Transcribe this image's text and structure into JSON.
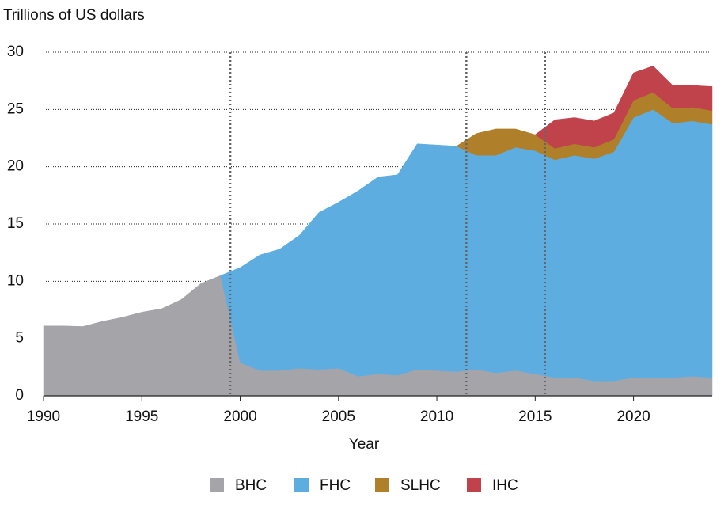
{
  "chart_data": {
    "type": "stacked-area",
    "title": "Trillions of US dollars",
    "x_label": "Year",
    "x": [
      1990,
      1991,
      1992,
      1993,
      1994,
      1995,
      1996,
      1997,
      1998,
      1999,
      2000,
      2001,
      2002,
      2003,
      2004,
      2005,
      2006,
      2007,
      2008,
      2009,
      2010,
      2011,
      2012,
      2013,
      2014,
      2015,
      2016,
      2017,
      2018,
      2019,
      2020,
      2021,
      2022,
      2023,
      2024
    ],
    "series": [
      {
        "name": "BHC",
        "color": "#a5a4a9",
        "values": [
          6.1,
          6.1,
          6.05,
          6.5,
          6.85,
          7.3,
          7.6,
          8.4,
          9.8,
          10.5,
          2.9,
          2.2,
          2.2,
          2.4,
          2.3,
          2.4,
          1.7,
          1.9,
          1.8,
          2.3,
          2.2,
          2.1,
          2.3,
          2.0,
          2.2,
          1.9,
          1.6,
          1.6,
          1.3,
          1.3,
          1.6,
          1.6,
          1.6,
          1.7,
          1.6
        ]
      },
      {
        "name": "FHC",
        "color": "#5eade0",
        "values": [
          null,
          null,
          null,
          null,
          null,
          null,
          null,
          null,
          null,
          0,
          8.3,
          10.1,
          10.6,
          11.6,
          13.7,
          14.5,
          16.2,
          17.2,
          17.5,
          19.7,
          19.7,
          19.7,
          18.7,
          19.0,
          19.5,
          19.5,
          19.0,
          19.4,
          19.4,
          20.0,
          22.7,
          23.4,
          22.2,
          22.3,
          22.1
        ]
      },
      {
        "name": "SLHC",
        "color": "#b07f2a",
        "values": [
          null,
          null,
          null,
          null,
          null,
          null,
          null,
          null,
          null,
          null,
          null,
          null,
          null,
          null,
          null,
          null,
          null,
          null,
          null,
          null,
          null,
          0,
          1.9,
          2.3,
          1.6,
          1.4,
          1.0,
          1.0,
          1.0,
          1.1,
          1.5,
          1.5,
          1.3,
          1.2,
          1.2
        ]
      },
      {
        "name": "IHC",
        "color": "#c0424a",
        "values": [
          null,
          null,
          null,
          null,
          null,
          null,
          null,
          null,
          null,
          null,
          null,
          null,
          null,
          null,
          null,
          null,
          null,
          null,
          null,
          null,
          null,
          null,
          null,
          null,
          null,
          0,
          2.5,
          2.3,
          2.3,
          2.3,
          2.4,
          2.3,
          2.0,
          1.9,
          2.1
        ]
      }
    ],
    "reference_lines": [
      1999.5,
      2011.5,
      2015.5
    ],
    "xlim": [
      1990,
      2024
    ],
    "xticks": [
      1990,
      1995,
      2000,
      2005,
      2010,
      2015,
      2020
    ],
    "ylim": [
      0,
      30
    ],
    "yticks": [
      0,
      5,
      10,
      15,
      20,
      25,
      30
    ],
    "legend": "bottom"
  }
}
